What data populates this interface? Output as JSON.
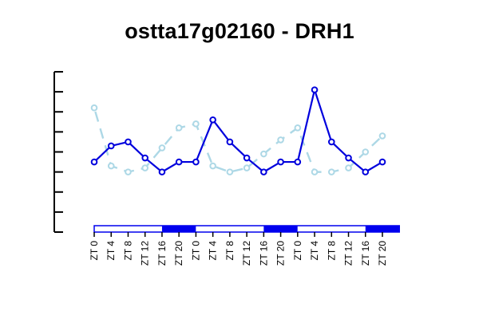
{
  "chart_data": {
    "type": "line",
    "title": "ostta17g02160 - DRH1",
    "xlabel": "",
    "ylabel": "",
    "categories": [
      "ZT 0",
      "ZT 4",
      "ZT 8",
      "ZT 12",
      "ZT 16",
      "ZT 20",
      "ZT 0",
      "ZT 4",
      "ZT 8",
      "ZT 12",
      "ZT 16",
      "ZT 20",
      "ZT 0",
      "ZT 4",
      "ZT 8",
      "ZT 12",
      "ZT 16",
      "ZT 20"
    ],
    "ylim": [
      0,
      8
    ],
    "y_ticks_labeled": false,
    "grid": false,
    "legend": "none",
    "series": [
      {
        "color": "#0000dd",
        "style": "solid",
        "values": [
          3.5,
          4.3,
          4.5,
          3.7,
          3.0,
          3.5,
          3.5,
          5.6,
          4.5,
          3.7,
          3.0,
          3.5,
          3.5,
          7.1,
          4.5,
          3.7,
          3.0,
          3.5
        ]
      },
      {
        "color": "#add8e6",
        "style": "dashed",
        "values": [
          6.2,
          3.3,
          3.0,
          3.2,
          4.2,
          5.2,
          5.4,
          3.3,
          3.0,
          3.2,
          3.9,
          4.6,
          5.2,
          3.0,
          3.0,
          3.2,
          4.0,
          4.8
        ]
      }
    ],
    "light_dark_bar": {
      "segments": [
        "light",
        "light",
        "dark",
        "light",
        "light",
        "dark",
        "light",
        "light",
        "dark"
      ],
      "light_color": "#ffffff",
      "dark_color": "#0000ee",
      "border_color": "#0000ee"
    }
  }
}
